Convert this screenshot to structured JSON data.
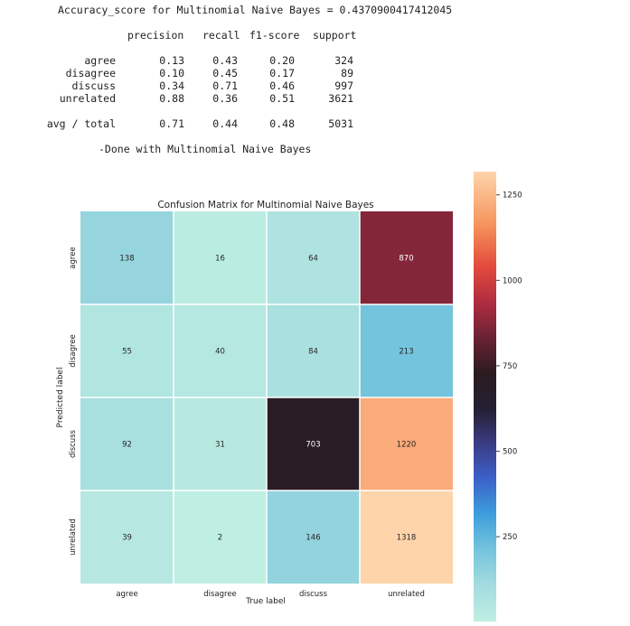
{
  "report": {
    "accuracy_line": "Accuracy_score for Multinomial Naive Bayes = 0.4370900417412045",
    "headers": [
      "precision",
      "recall",
      "f1-score",
      "support"
    ],
    "rows": [
      {
        "label": "agree",
        "precision": "0.13",
        "recall": "0.43",
        "f1": "0.20",
        "support": "324"
      },
      {
        "label": "disagree",
        "precision": "0.10",
        "recall": "0.45",
        "f1": "0.17",
        "support": "89"
      },
      {
        "label": "discuss",
        "precision": "0.34",
        "recall": "0.71",
        "f1": "0.46",
        "support": "997"
      },
      {
        "label": "unrelated",
        "precision": "0.88",
        "recall": "0.36",
        "f1": "0.51",
        "support": "3621"
      }
    ],
    "avg": {
      "label": "avg / total",
      "precision": "0.71",
      "recall": "0.44",
      "f1": "0.48",
      "support": "5031"
    },
    "done_line": "-Done with Multinomial Naive Bayes"
  },
  "chart_data": {
    "type": "heatmap",
    "title": "Confusion Matrix for Multinomial Naive Bayes",
    "xlabel": "True label",
    "ylabel": "Predicted label",
    "x_categories": [
      "agree",
      "disagree",
      "discuss",
      "unrelated"
    ],
    "y_categories": [
      "agree",
      "disagree",
      "discuss",
      "unrelated"
    ],
    "values": [
      [
        138,
        16,
        64,
        870
      ],
      [
        55,
        40,
        84,
        213
      ],
      [
        92,
        31,
        703,
        1220
      ],
      [
        39,
        2,
        146,
        1318
      ]
    ],
    "colormap": "icefire",
    "vmin": 2,
    "vmax": 1318,
    "colorbar_ticks": [
      250,
      500,
      750,
      1000,
      1250
    ],
    "grid_line_color": "#ffffff"
  }
}
